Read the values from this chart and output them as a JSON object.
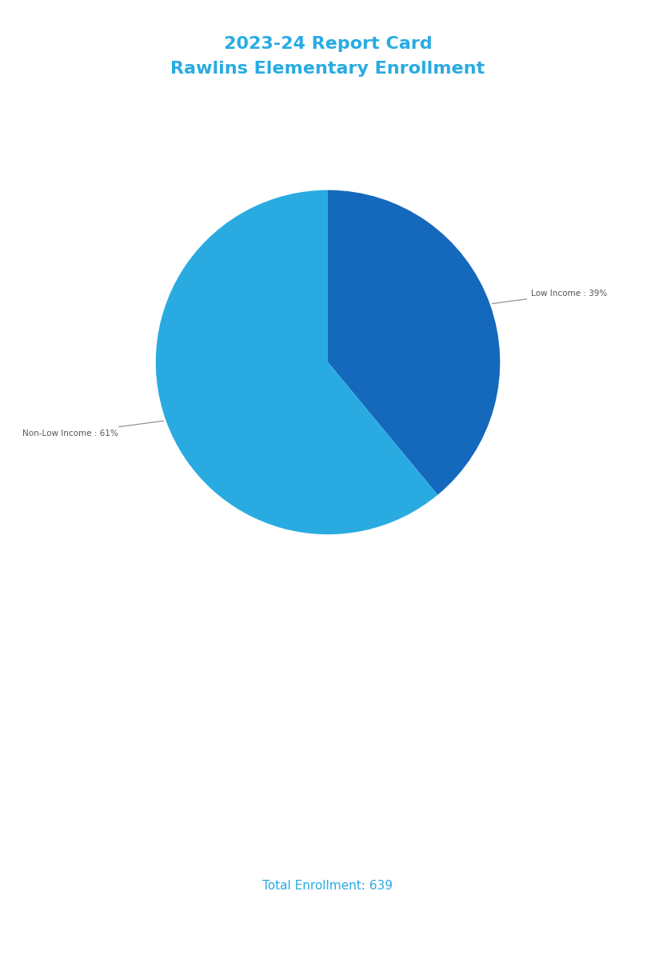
{
  "title_line1": "2023-24 Report Card",
  "title_line2": "Rawlins Elementary Enrollment",
  "title_color": "#29ABE2",
  "slices": [
    {
      "label": "Low Income : 39%",
      "value": 39,
      "color": "#1469BC"
    },
    {
      "label": "Non-Low Income : 61%",
      "value": 61,
      "color": "#29ABE2"
    }
  ],
  "total_enrollment_text": "Total Enrollment: 639",
  "total_enrollment_color": "#29ABE2",
  "background_color": "#ffffff",
  "label_fontsize": 7.5,
  "title_fontsize": 16
}
